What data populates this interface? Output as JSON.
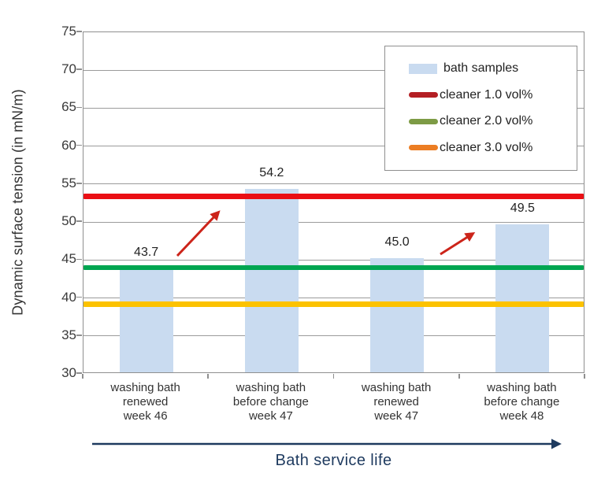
{
  "chart_data": {
    "type": "bar",
    "title": "",
    "ylabel": "Dynamic surface tension (in mN/m)",
    "xlabel": "Bath service life",
    "ylim": [
      30,
      75
    ],
    "ytick_step": 5,
    "grid": true,
    "categories": [
      [
        "washing bath",
        "renewed",
        "week 46"
      ],
      [
        "washing bath",
        "before change",
        "week 47"
      ],
      [
        "washing bath",
        "renewed",
        "week 47"
      ],
      [
        "washing bath",
        "before change",
        "week 48"
      ]
    ],
    "values": [
      43.7,
      54.2,
      45.0,
      49.5
    ],
    "value_labels": [
      "43.7",
      "54.2",
      "45.0",
      "49.5"
    ],
    "bar_color": "#c9dbf0",
    "ref_lines": [
      {
        "label": "cleaner 1.0 vol%",
        "value": 53.4,
        "color": "#ea0f14",
        "thickness": 7
      },
      {
        "label": "cleaner 2.0 vol%",
        "value": 44.0,
        "color": "#00a651",
        "thickness": 6
      },
      {
        "label": "cleaner 3.0 vol%",
        "value": 39.2,
        "color": "#fcc200",
        "thickness": 7
      }
    ],
    "legend": {
      "position": "top-right",
      "items": [
        {
          "label": "bath samples",
          "swatch": "bar",
          "color": "#c9dbf0"
        },
        {
          "label": "cleaner 1.0 vol%",
          "swatch": "line",
          "color": "#b41f24"
        },
        {
          "label": "cleaner 2.0 vol%",
          "swatch": "line",
          "color": "#7d9b45"
        },
        {
          "label": "cleaner 3.0 vol%",
          "swatch": "line",
          "color": "#ec7d23"
        }
      ]
    },
    "annotations": [
      {
        "type": "increase-arrow",
        "from_bar": 1,
        "to_bar": 2,
        "color": "#cc241a"
      },
      {
        "type": "increase-arrow",
        "from_bar": 3,
        "to_bar": 4,
        "color": "#cc241a"
      }
    ]
  },
  "colors": {
    "gridline": "#9b9b9b",
    "frame": "#8f8f8f",
    "text": "#333333",
    "axis_arrow": "#1e3a5f",
    "annotation_arrow": "#cc241a",
    "background": "#ffffff"
  }
}
